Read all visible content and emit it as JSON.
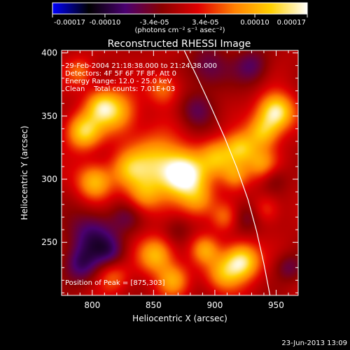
{
  "chart_data": {
    "type": "heatmap",
    "title": "Reconstructed RHESSI Image",
    "xlabel": "Heliocentric X (arcsec)",
    "ylabel": "Heliocentric Y (arcsec)",
    "xlim": [
      775,
      968
    ],
    "ylim": [
      208,
      402
    ],
    "x_ticks": [
      800,
      850,
      900,
      950
    ],
    "y_ticks": [
      250,
      300,
      350,
      400
    ],
    "colorbar": {
      "label": "(photons cm⁻² s⁻¹ asec⁻²)",
      "range": [
        -0.00017,
        0.00017
      ],
      "tick_labels": [
        "-0.00017",
        "-0.00010",
        "-3.4e-05",
        "3.4e-05",
        "0.00010",
        "0.00017"
      ],
      "tick_values": [
        -0.00017,
        -0.0001,
        -3.4e-05,
        3.4e-05,
        0.0001,
        0.00017
      ],
      "colormap": [
        "#0000ff",
        "#000000",
        "#4a0070",
        "#8a0000",
        "#e00000",
        "#ff8000",
        "#ffd000",
        "#ffffff"
      ]
    },
    "annotations": [
      "29-Feb-2004 21:18:38.000 to 21:24:38.000",
      "Detectors: 4F 5F 6F 7F 8F, Att 0",
      "Energy Range: 12.0 - 25.0 keV",
      "Clean    Total counts: 7.01E+03"
    ],
    "peak_label": "Position of Peak = [875,303]",
    "peak_position": [
      875,
      303
    ],
    "limb_curve": {
      "x": [
        875,
        886,
        897,
        908,
        918,
        927,
        934,
        940,
        945
      ],
      "y": [
        402,
        380,
        357,
        333,
        309,
        284,
        259,
        233,
        208
      ]
    },
    "sources": [
      {
        "x": 875,
        "y": 303,
        "v": 0.00017,
        "s": 12
      },
      {
        "x": 852,
        "y": 312,
        "v": 0.00012,
        "s": 16
      },
      {
        "x": 793,
        "y": 338,
        "v": 0.00013,
        "s": 10
      },
      {
        "x": 802,
        "y": 298,
        "v": 0.00011,
        "s": 10
      },
      {
        "x": 820,
        "y": 353,
        "v": 0.0001,
        "s": 12
      },
      {
        "x": 807,
        "y": 358,
        "v": 9e-05,
        "s": 9
      },
      {
        "x": 829,
        "y": 308,
        "v": 7e-05,
        "s": 10
      },
      {
        "x": 842,
        "y": 287,
        "v": 7e-05,
        "s": 10
      },
      {
        "x": 887,
        "y": 283,
        "v": 8e-05,
        "s": 10
      },
      {
        "x": 902,
        "y": 317,
        "v": 0.0001,
        "s": 10
      },
      {
        "x": 921,
        "y": 324,
        "v": 0.00011,
        "s": 9
      },
      {
        "x": 917,
        "y": 303,
        "v": 8e-05,
        "s": 8
      },
      {
        "x": 950,
        "y": 353,
        "v": 0.00016,
        "s": 10
      },
      {
        "x": 939,
        "y": 337,
        "v": 0.0001,
        "s": 9
      },
      {
        "x": 938,
        "y": 312,
        "v": 8e-05,
        "s": 9
      },
      {
        "x": 922,
        "y": 235,
        "v": 0.00015,
        "s": 10
      },
      {
        "x": 907,
        "y": 225,
        "v": 9e-05,
        "s": 10
      },
      {
        "x": 892,
        "y": 244,
        "v": 8e-05,
        "s": 8
      },
      {
        "x": 852,
        "y": 240,
        "v": 0.00011,
        "s": 10
      },
      {
        "x": 866,
        "y": 220,
        "v": 9e-05,
        "s": 9
      },
      {
        "x": 817,
        "y": 223,
        "v": 6e-05,
        "s": 9
      },
      {
        "x": 858,
        "y": 372,
        "v": 7e-05,
        "s": 9
      },
      {
        "x": 908,
        "y": 270,
        "v": 6e-05,
        "s": 8
      },
      {
        "x": 942,
        "y": 276,
        "v": 5e-05,
        "s": 8
      },
      {
        "x": 790,
        "y": 385,
        "v": 6e-05,
        "s": 8
      },
      {
        "x": 895,
        "y": 388,
        "v": -6e-05,
        "s": 12
      },
      {
        "x": 930,
        "y": 390,
        "v": -6e-05,
        "s": 10
      },
      {
        "x": 885,
        "y": 355,
        "v": -5e-05,
        "s": 10
      },
      {
        "x": 800,
        "y": 255,
        "v": -8e-05,
        "s": 14
      },
      {
        "x": 790,
        "y": 232,
        "v": -7e-05,
        "s": 10
      },
      {
        "x": 815,
        "y": 242,
        "v": -5e-05,
        "s": 9
      },
      {
        "x": 828,
        "y": 270,
        "v": -4e-05,
        "s": 9
      },
      {
        "x": 925,
        "y": 270,
        "v": -5e-05,
        "s": 9
      },
      {
        "x": 948,
        "y": 300,
        "v": -4e-05,
        "s": 8
      },
      {
        "x": 960,
        "y": 230,
        "v": -5e-05,
        "s": 8
      },
      {
        "x": 870,
        "y": 260,
        "v": -3e-05,
        "s": 8
      }
    ]
  },
  "date_stamp": "23-Jun-2013 13:09"
}
